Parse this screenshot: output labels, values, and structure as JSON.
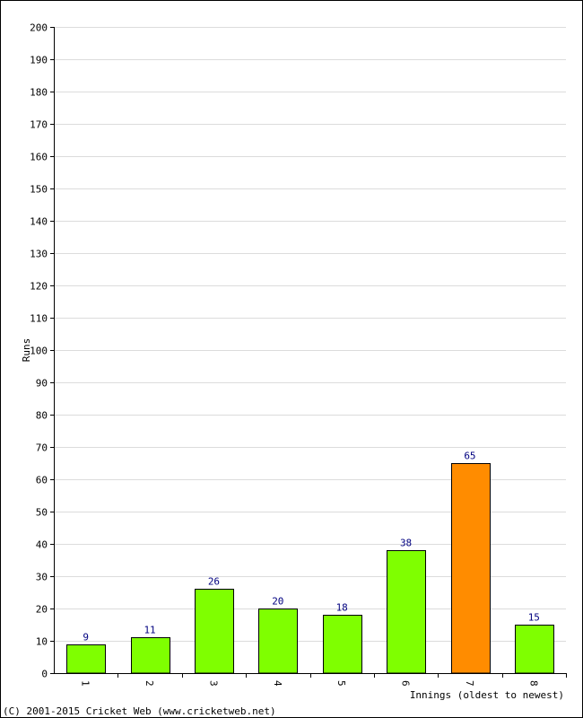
{
  "chart_data": {
    "type": "bar",
    "categories": [
      "1",
      "2",
      "3",
      "4",
      "5",
      "6",
      "7",
      "8"
    ],
    "values": [
      9,
      11,
      26,
      20,
      18,
      38,
      65,
      15
    ],
    "bar_colors": [
      "#7fff00",
      "#7fff00",
      "#7fff00",
      "#7fff00",
      "#7fff00",
      "#7fff00",
      "#ff8c00",
      "#7fff00"
    ],
    "label_color": "#000080",
    "title": "",
    "xlabel": "Innings (oldest to newest)",
    "ylabel": "Runs",
    "ylim": [
      0,
      200
    ],
    "ytick_step": 10,
    "grid": true
  },
  "footer": "(C) 2001-2015 Cricket Web (www.cricketweb.net)"
}
